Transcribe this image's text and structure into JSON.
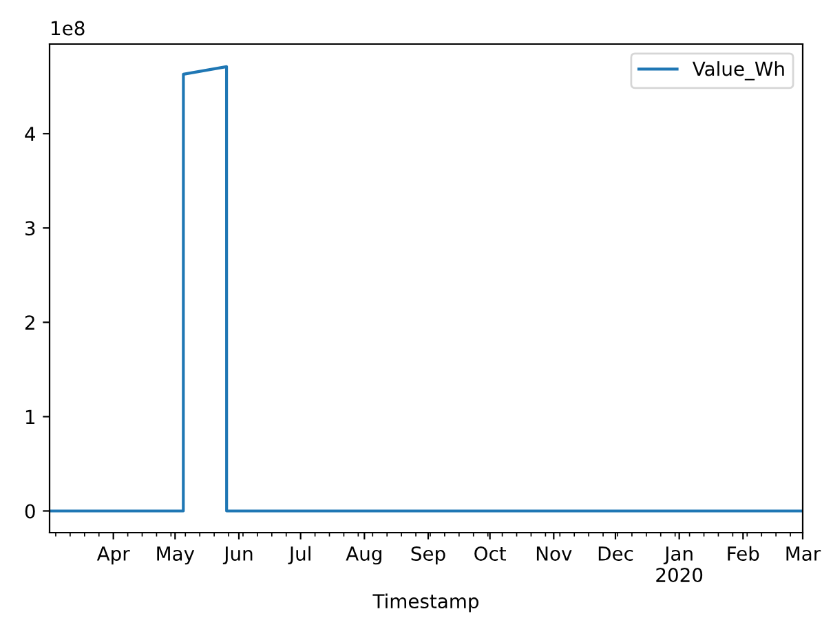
{
  "chart_data": {
    "type": "line",
    "xlabel": "Timestamp",
    "annotations": [
      "1e8"
    ],
    "series": [
      {
        "name": "Value_Wh",
        "color": "#1f77b4",
        "x": [
          "2019-03-01",
          "2019-05-05",
          "2019-05-05T01:00",
          "2019-05-26",
          "2019-05-26T01:00",
          "2020-03-01"
        ],
        "values": [
          0,
          0,
          4.63,
          4.71,
          0,
          0
        ]
      }
    ],
    "xlim": [
      "2019-03-01",
      "2020-03-01"
    ],
    "xticks": [
      {
        "value": "2019-04-01",
        "label": "Apr"
      },
      {
        "value": "2019-05-01",
        "label": "May"
      },
      {
        "value": "2019-06-01",
        "label": "Jun"
      },
      {
        "value": "2019-07-01",
        "label": "Jul"
      },
      {
        "value": "2019-08-01",
        "label": "Aug"
      },
      {
        "value": "2019-09-01",
        "label": "Sep"
      },
      {
        "value": "2019-10-01",
        "label": "Oct"
      },
      {
        "value": "2019-11-01",
        "label": "Nov"
      },
      {
        "value": "2019-12-01",
        "label": "Dec"
      },
      {
        "value": "2020-01-01",
        "label": "Jan\n2020"
      },
      {
        "value": "2020-02-01",
        "label": "Feb"
      },
      {
        "value": "2020-03-01",
        "label": "Mar"
      }
    ],
    "ylim": [
      -0.23,
      4.95
    ],
    "yticks": [
      0,
      1,
      2,
      3,
      4
    ],
    "legend": "top right",
    "grid": false,
    "marker": "none",
    "line_style": "solid"
  }
}
